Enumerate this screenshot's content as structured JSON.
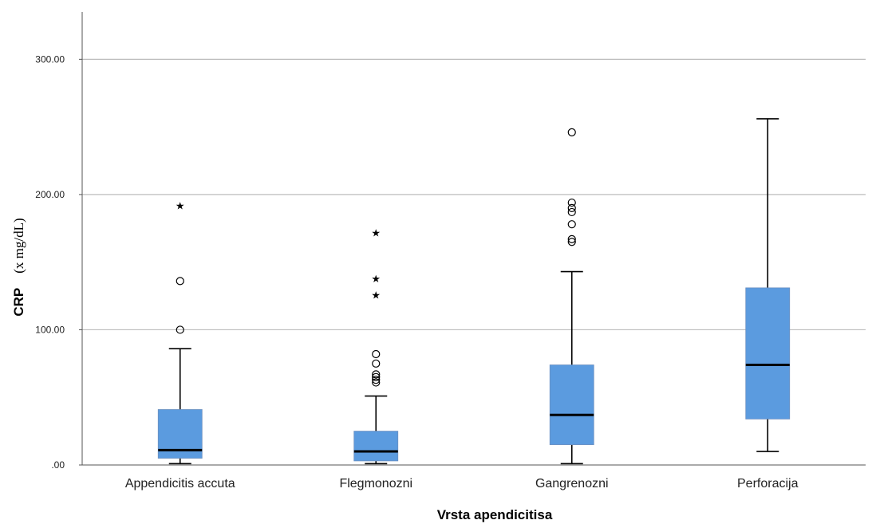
{
  "chart_data": {
    "type": "boxplot",
    "title": "",
    "xlabel": "Vrsta apendicitisa",
    "ylabel_main": "CRP",
    "ylabel_unit": "(x mg/dL)",
    "ylim": [
      0,
      335
    ],
    "yticks": [
      0,
      100,
      200,
      300
    ],
    "ytick_labels": [
      ".00",
      "100.00",
      "200.00",
      "300.00"
    ],
    "grid": true,
    "box_color": "#5b9bdf",
    "categories": [
      "Appendicitis accuta",
      "Flegmonozni",
      "Gangrenozni",
      "Perforacija"
    ],
    "series": [
      {
        "category": "Appendicitis accuta",
        "min": 1,
        "q1": 5,
        "median": 11,
        "q3": 41,
        "max": 86,
        "outliers": [
          100,
          136
        ],
        "extremes": [
          192
        ]
      },
      {
        "category": "Flegmonozni",
        "min": 1,
        "q1": 3,
        "median": 10,
        "q3": 25,
        "max": 51,
        "outliers": [
          61,
          63,
          65,
          67,
          75,
          82
        ],
        "extremes": [
          126,
          138,
          172
        ]
      },
      {
        "category": "Gangrenozni",
        "min": 1,
        "q1": 15,
        "median": 37,
        "q3": 74,
        "max": 143,
        "outliers": [
          165,
          167,
          178,
          187,
          190,
          194,
          246
        ],
        "extremes": []
      },
      {
        "category": "Perforacija",
        "min": 10,
        "q1": 34,
        "median": 74,
        "q3": 131,
        "max": 256,
        "outliers": [],
        "extremes": []
      }
    ]
  }
}
